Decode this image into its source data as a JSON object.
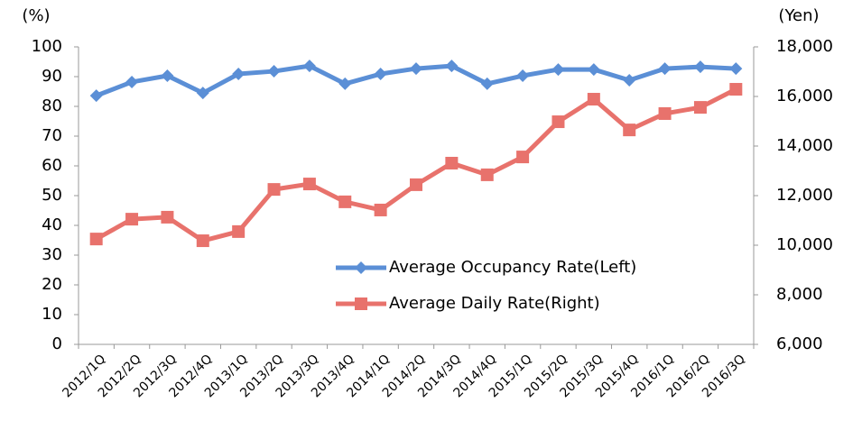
{
  "chart_data": {
    "type": "line",
    "y_unit": "(%)",
    "y2_unit": "(Yen)",
    "categories": [
      "2012/1Q",
      "2012/2Q",
      "2012/3Q",
      "2012/4Q",
      "2013/1Q",
      "2013/2Q",
      "2013/3Q",
      "2013/4Q",
      "2014/1Q",
      "2014/2Q",
      "2014/3Q",
      "2014/4Q",
      "2015/1Q",
      "2015/2Q",
      "2015/3Q",
      "2015/4Q",
      "2016/1Q",
      "2016/2Q",
      "2016/3Q"
    ],
    "series": [
      {
        "name": "Average Occupancy Rate(Left)",
        "color": "#5b8fd6",
        "marker": "diamond",
        "axis": "y",
        "values": [
          83.6,
          88.2,
          90.3,
          84.5,
          90.9,
          91.8,
          93.6,
          87.6,
          90.9,
          92.7,
          93.6,
          87.6,
          90.3,
          92.4,
          92.4,
          88.8,
          92.7,
          93.3,
          92.7
        ]
      },
      {
        "name": "Average Daily Rate(Right)",
        "color": "#e8726c",
        "marker": "square",
        "axis": "y2",
        "values": [
          10250,
          11050,
          11130,
          10180,
          10550,
          12250,
          12470,
          11750,
          11420,
          12440,
          13310,
          12840,
          13560,
          14980,
          15890,
          14650,
          15310,
          15560,
          16290
        ]
      }
    ],
    "ylim": [
      0,
      100
    ],
    "yticks": [
      0,
      10,
      20,
      30,
      40,
      50,
      60,
      70,
      80,
      90,
      100
    ],
    "y2lim": [
      6000,
      18000
    ],
    "y2ticks": [
      {
        "value": 6000,
        "label": "6,000"
      },
      {
        "value": 8000,
        "label": "8,000"
      },
      {
        "value": 10000,
        "label": "10,000"
      },
      {
        "value": 12000,
        "label": "12,000"
      },
      {
        "value": 14000,
        "label": "14,000"
      },
      {
        "value": 16000,
        "label": "16,000"
      },
      {
        "value": 18000,
        "label": "18,000"
      }
    ],
    "grid": false,
    "legend": "inside-bottom-right"
  }
}
